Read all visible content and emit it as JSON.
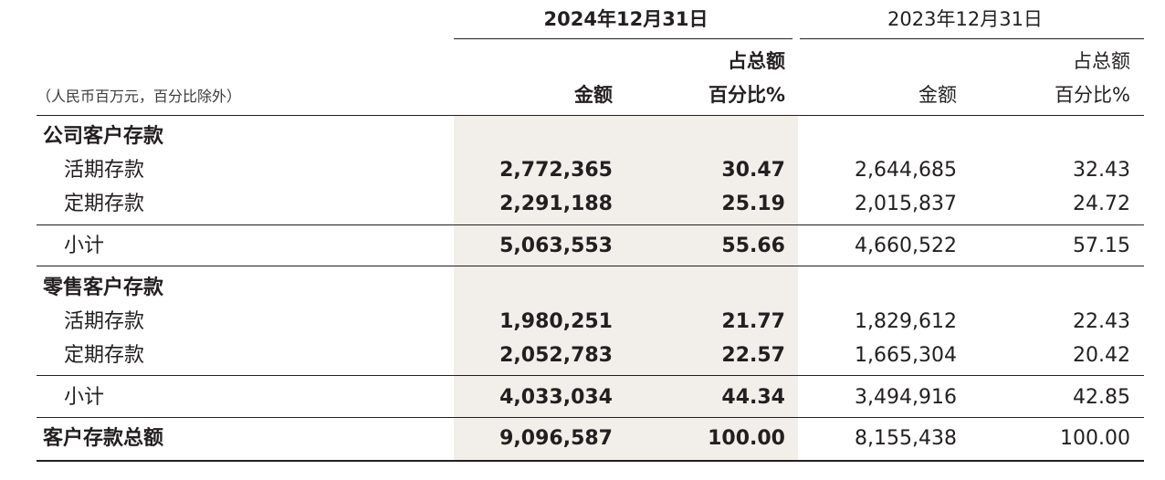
{
  "header": {
    "period_current": "2024年12月31日",
    "period_prior": "2023年12月31日",
    "unit_note": "（人民币百万元，百分比除外）",
    "col_amount": "金额",
    "col_pct_line1": "占总额",
    "col_pct_line2": "百分比%"
  },
  "rows": [
    {
      "label": "公司客户存款",
      "type": "section",
      "cur_amount": "",
      "cur_pct": "",
      "prior_amount": "",
      "prior_pct": ""
    },
    {
      "label": "活期存款",
      "type": "item",
      "cur_amount": "2,772,365",
      "cur_pct": "30.47",
      "prior_amount": "2,644,685",
      "prior_pct": "32.43"
    },
    {
      "label": "定期存款",
      "type": "item",
      "cur_amount": "2,291,188",
      "cur_pct": "25.19",
      "prior_amount": "2,015,837",
      "prior_pct": "24.72"
    },
    {
      "label": "小计",
      "type": "subtotal",
      "cur_amount": "5,063,553",
      "cur_pct": "55.66",
      "prior_amount": "4,660,522",
      "prior_pct": "57.15"
    },
    {
      "label": "零售客户存款",
      "type": "section",
      "cur_amount": "",
      "cur_pct": "",
      "prior_amount": "",
      "prior_pct": ""
    },
    {
      "label": "活期存款",
      "type": "item",
      "cur_amount": "1,980,251",
      "cur_pct": "21.77",
      "prior_amount": "1,829,612",
      "prior_pct": "22.43"
    },
    {
      "label": "定期存款",
      "type": "item",
      "cur_amount": "2,052,783",
      "cur_pct": "22.57",
      "prior_amount": "1,665,304",
      "prior_pct": "20.42"
    },
    {
      "label": "小计",
      "type": "subtotal",
      "cur_amount": "4,033,034",
      "cur_pct": "44.34",
      "prior_amount": "3,494,916",
      "prior_pct": "42.85"
    },
    {
      "label": "客户存款总额",
      "type": "total",
      "cur_amount": "9,096,587",
      "cur_pct": "100.00",
      "prior_amount": "8,155,438",
      "prior_pct": "100.00"
    }
  ],
  "colors": {
    "shade": "#f2efea",
    "text": "#231f20"
  }
}
